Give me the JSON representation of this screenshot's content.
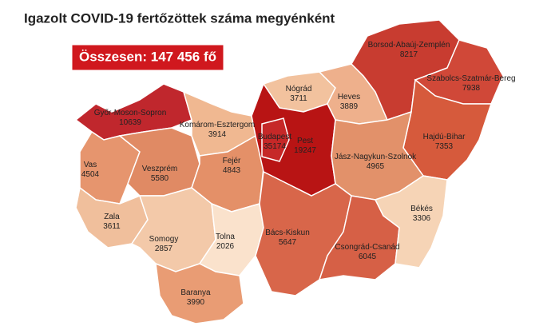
{
  "title": "Igazolt COVID-19 fertőzöttek száma megyénként",
  "total": "Összesen: 147 456 fő",
  "regions": [
    {
      "name": "Győr-Moson-Sopron",
      "value": 10639,
      "color": "#c0272d"
    },
    {
      "name": "Vas",
      "value": 4504,
      "color": "#e6956e"
    },
    {
      "name": "Zala",
      "value": 3611,
      "color": "#f0bf9c"
    },
    {
      "name": "Veszprém",
      "value": 5580,
      "color": "#e08a64"
    },
    {
      "name": "Komárom-Esztergom",
      "value": 3914,
      "color": "#f0b891"
    },
    {
      "name": "Fejér",
      "value": 4843,
      "color": "#e49068"
    },
    {
      "name": "Somogy",
      "value": 2857,
      "color": "#f3c9a9"
    },
    {
      "name": "Tolna",
      "value": 2026,
      "color": "#fae2cc"
    },
    {
      "name": "Baranya",
      "value": 3990,
      "color": "#e99c74"
    },
    {
      "name": "Nógrád",
      "value": 3711,
      "color": "#f2c29e"
    },
    {
      "name": "Pest",
      "value": 19247,
      "color": "#b81414"
    },
    {
      "name": "Budapest",
      "value": 35174,
      "color": "#c62828"
    },
    {
      "name": "Heves",
      "value": 3889,
      "color": "#eeb08c"
    },
    {
      "name": "Borsod-Abaúj-Zemplén",
      "value": 8217,
      "color": "#c83c30"
    },
    {
      "name": "Szabolcs-Szatmár-Bereg",
      "value": 7938,
      "color": "#d04838"
    },
    {
      "name": "Hajdú-Bihar",
      "value": 7353,
      "color": "#d65a3c"
    },
    {
      "name": "Jász-Nagykun-Szolnok",
      "value": 4965,
      "color": "#e2916a"
    },
    {
      "name": "Bács-Kiskun",
      "value": 5647,
      "color": "#d8664a"
    },
    {
      "name": "Csongrád-Csanád",
      "value": 6045,
      "color": "#d66046"
    },
    {
      "name": "Békés",
      "value": 3306,
      "color": "#f6d4b6"
    }
  ]
}
